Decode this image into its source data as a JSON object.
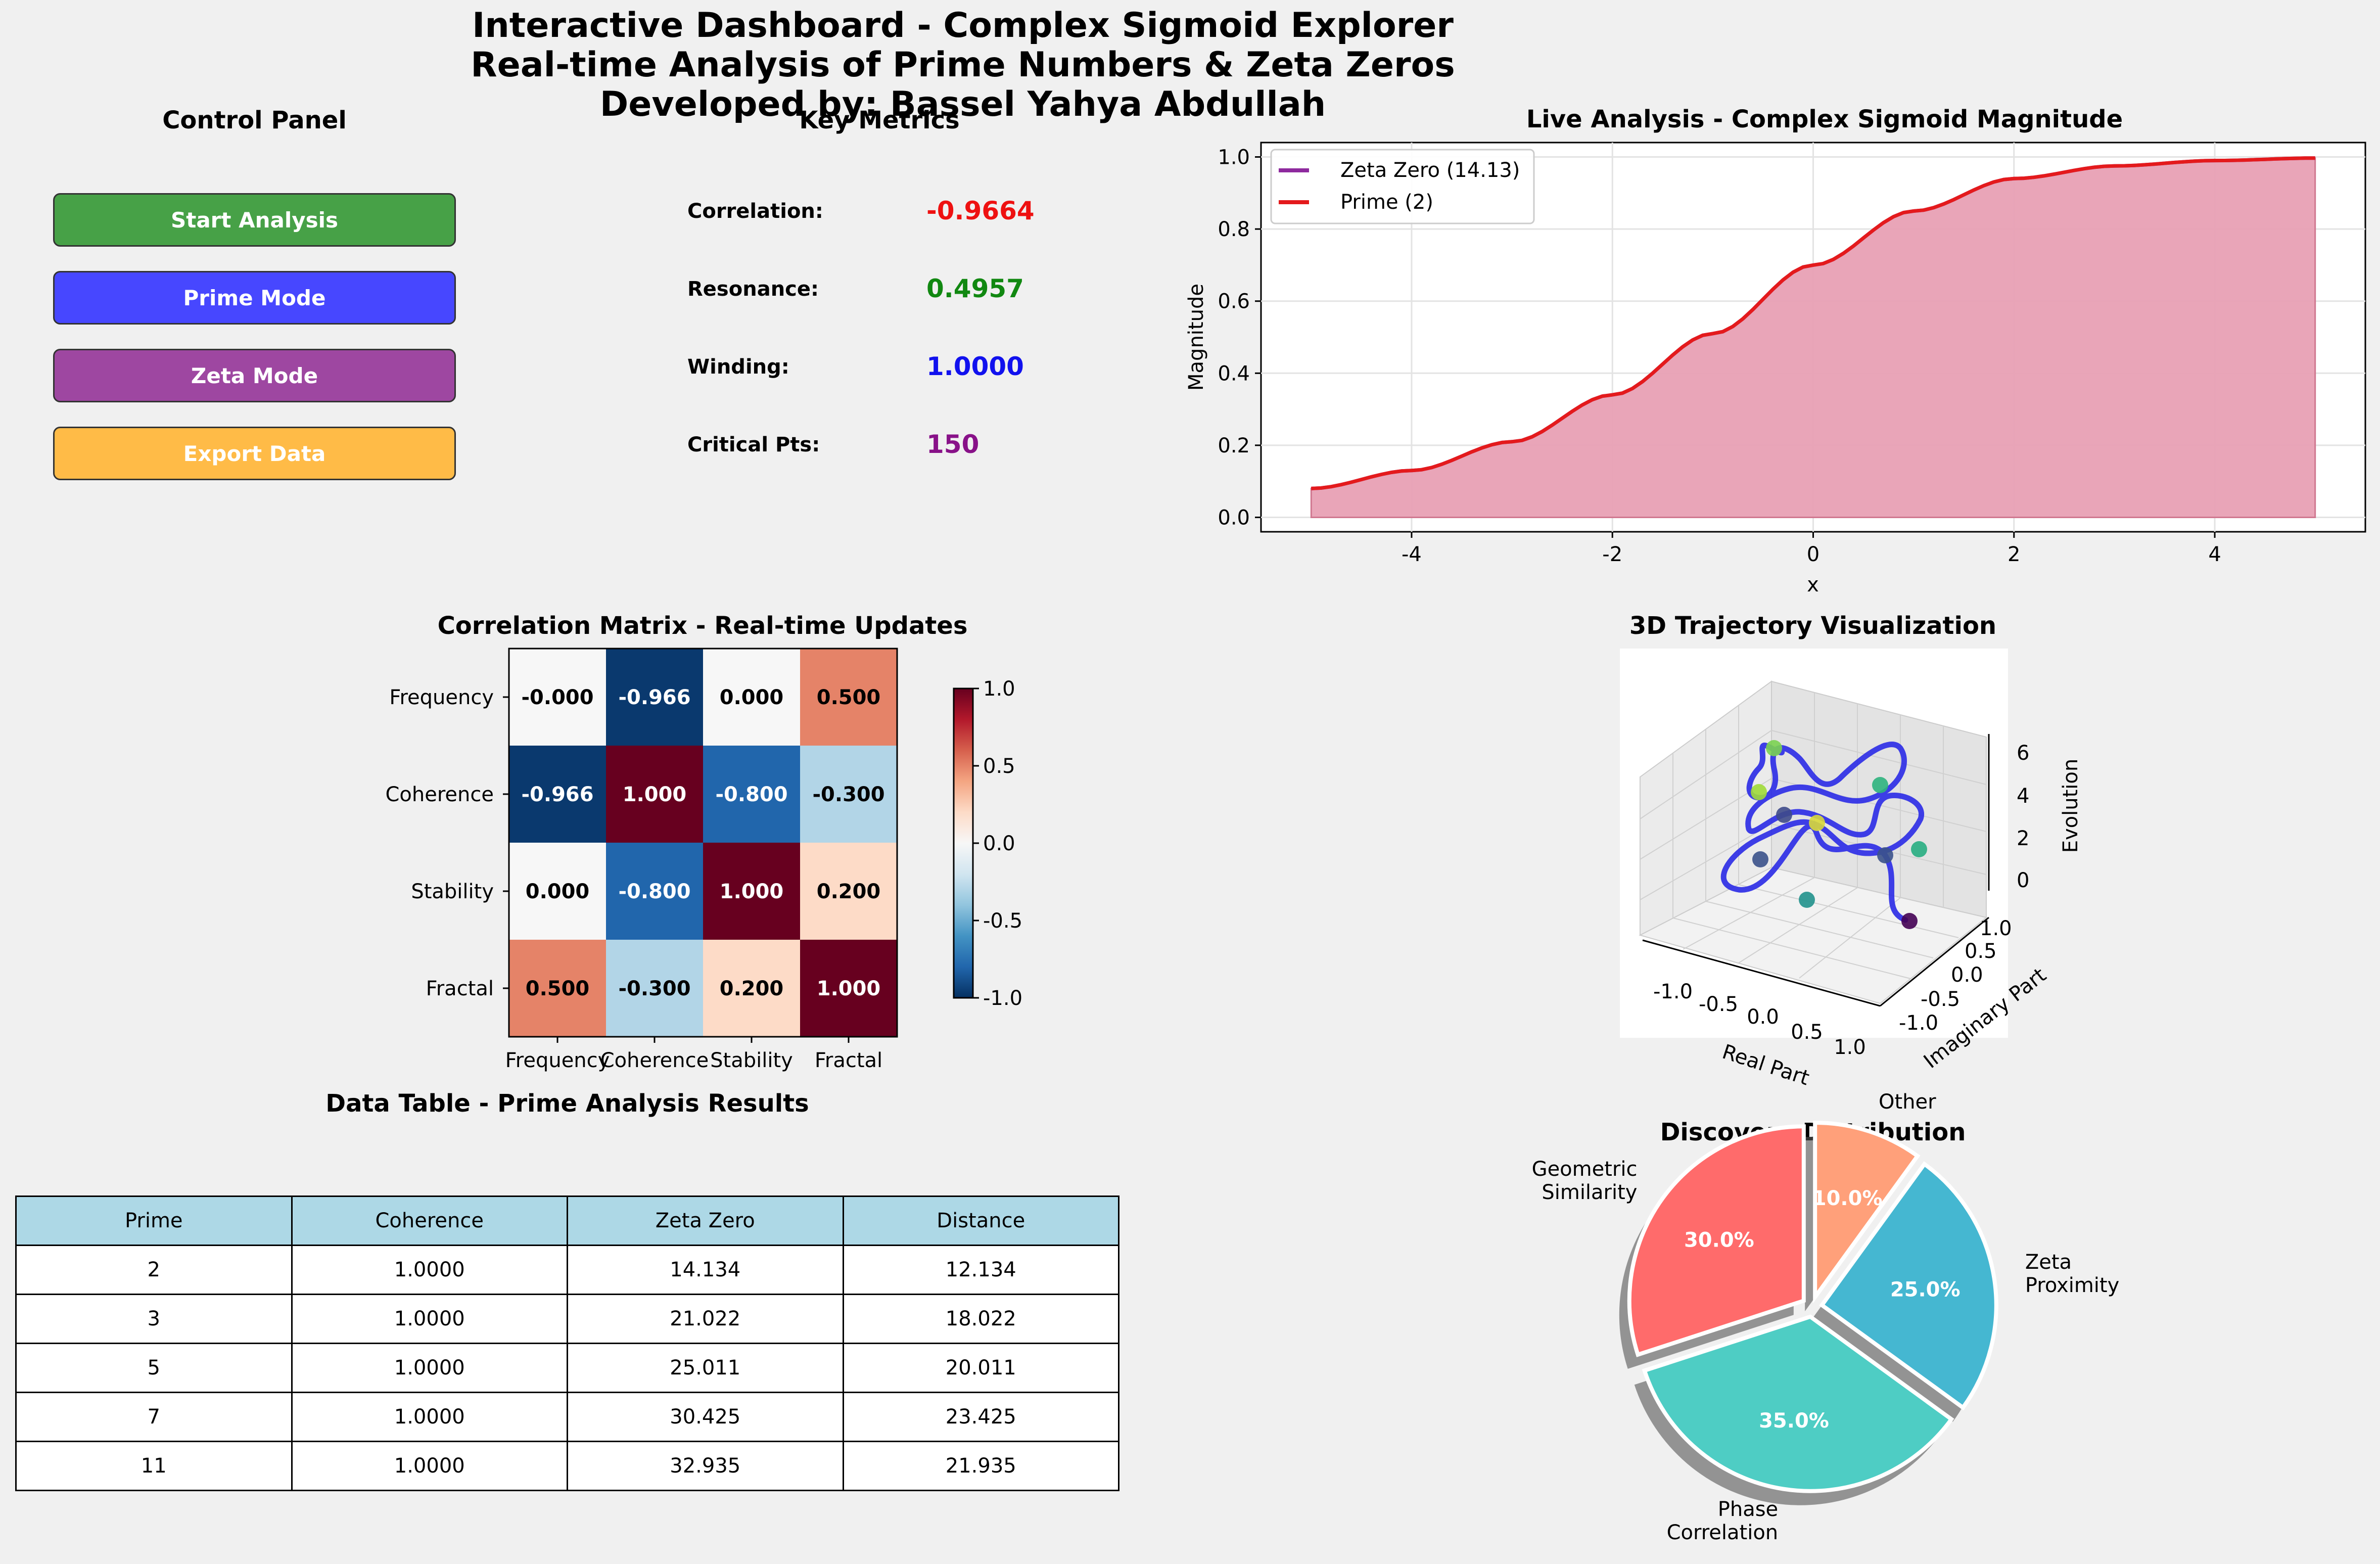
{
  "header": {
    "title_line1": "Interactive Dashboard - Complex Sigmoid Explorer",
    "title_line2": "Real-time Analysis of Prime Numbers & Zeta Zeros",
    "title_line3": "Developed by: Bassel Yahya Abdullah"
  },
  "control_panel": {
    "title": "Control Panel",
    "buttons": [
      {
        "label": "Start Analysis",
        "color": "#47a147"
      },
      {
        "label": "Prime Mode",
        "color": "#4747ff"
      },
      {
        "label": "Zeta Mode",
        "color": "#9e47a1"
      },
      {
        "label": "Export Data",
        "color": "#ffbb47"
      }
    ]
  },
  "key_metrics": {
    "title": "Key Metrics",
    "items": [
      {
        "label": "Correlation:",
        "value": "-0.9664",
        "color": "#ee1111"
      },
      {
        "label": "Resonance:",
        "value": "0.4957",
        "color": "#118811"
      },
      {
        "label": "Winding:",
        "value": "1.0000",
        "color": "#1111ee"
      },
      {
        "label": "Critical Pts:",
        "value": "150",
        "color": "#881188"
      }
    ]
  },
  "chart_data": [
    {
      "id": "live",
      "type": "line",
      "title": "Live Analysis - Complex Sigmoid Magnitude",
      "xlabel": "x",
      "ylabel": "Magnitude",
      "xlim": [
        -5.5,
        5.5
      ],
      "ylim": [
        -0.04,
        1.04
      ],
      "xticks": [
        -4,
        -2,
        0,
        2,
        4
      ],
      "yticks": [
        0.0,
        0.2,
        0.4,
        0.6,
        0.8,
        1.0
      ],
      "ytick_labels": [
        "0.0",
        "0.2",
        "0.4",
        "0.6",
        "0.8",
        "1.0"
      ],
      "grid": true,
      "legend_position": "top-left",
      "series": [
        {
          "name": "Zeta Zero (14.13)",
          "color": "#8e2a9e",
          "x": [
            -5,
            -4,
            -3,
            -2,
            -1,
            0,
            1,
            2,
            3,
            4,
            5
          ],
          "y": [
            0.08,
            0.13,
            0.21,
            0.34,
            0.51,
            0.7,
            0.85,
            0.94,
            0.975,
            0.99,
            0.997
          ]
        },
        {
          "name": "Prime (2)",
          "color": "#e41a1c",
          "x": [
            -5,
            -4,
            -3,
            -2,
            -1,
            0,
            1,
            2,
            3,
            4,
            5
          ],
          "y": [
            0.08,
            0.13,
            0.21,
            0.34,
            0.51,
            0.7,
            0.85,
            0.94,
            0.975,
            0.99,
            0.997
          ]
        }
      ],
      "fill_color": "#e8a0b4"
    },
    {
      "id": "corr",
      "type": "heatmap",
      "title": "Correlation Matrix - Real-time Updates",
      "labels": [
        "Frequency",
        "Coherence",
        "Stability",
        "Fractal"
      ],
      "values": [
        [
          -0.0,
          -0.966,
          0.0,
          0.5
        ],
        [
          -0.966,
          1.0,
          -0.8,
          -0.3
        ],
        [
          0.0,
          -0.8,
          1.0,
          0.2
        ],
        [
          0.5,
          -0.3,
          0.2,
          1.0
        ]
      ],
      "cell_labels": [
        [
          "-0.000",
          "-0.966",
          "0.000",
          "0.500"
        ],
        [
          "-0.966",
          "1.000",
          "-0.800",
          "-0.300"
        ],
        [
          "0.000",
          "-0.800",
          "1.000",
          "0.200"
        ],
        [
          "0.500",
          "-0.300",
          "0.200",
          "1.000"
        ]
      ],
      "colorbar": {
        "min": -1.0,
        "max": 1.0,
        "ticks": [
          "1.0",
          "0.5",
          "0.0",
          "-0.5",
          "-1.0"
        ],
        "colormap": "RdBu_r"
      }
    },
    {
      "id": "traj",
      "type": "scatter",
      "title": "3D Trajectory Visualization",
      "xlabel": "Real Part",
      "ylabel": "Imaginary Part",
      "zlabel": "Evolution",
      "x_ticks": [
        "-1.0",
        "-0.5",
        "0.0",
        "0.5",
        "1.0"
      ],
      "y_ticks": [
        "1.0",
        "0.5",
        "0.0",
        "-0.5",
        "-1.0"
      ],
      "z_ticks": [
        "6",
        "4",
        "2",
        "0"
      ],
      "line_color": "#2a2ae6"
    },
    {
      "id": "pie",
      "type": "pie",
      "title": "Discovery Distribution",
      "slices": [
        {
          "label": "Geometric\nSimilarity",
          "value": 30.0,
          "pct": "30.0%",
          "color": "#ff6b6b"
        },
        {
          "label": "Phase\nCorrelation",
          "value": 35.0,
          "pct": "35.0%",
          "color": "#4ecdc4"
        },
        {
          "label": "Zeta\nProximity",
          "value": 25.0,
          "pct": "25.0%",
          "color": "#45b7d1"
        },
        {
          "label": "Other",
          "value": 10.0,
          "pct": "10.0%",
          "color": "#ffa07a"
        }
      ]
    }
  ],
  "table": {
    "title": "Data Table - Prime Analysis Results",
    "headers": [
      "Prime",
      "Coherence",
      "Zeta Zero",
      "Distance"
    ],
    "rows": [
      [
        "2",
        "1.0000",
        "14.134",
        "12.134"
      ],
      [
        "3",
        "1.0000",
        "21.022",
        "18.022"
      ],
      [
        "5",
        "1.0000",
        "25.011",
        "20.011"
      ],
      [
        "7",
        "1.0000",
        "30.425",
        "23.425"
      ],
      [
        "11",
        "1.0000",
        "32.935",
        "21.935"
      ]
    ]
  }
}
